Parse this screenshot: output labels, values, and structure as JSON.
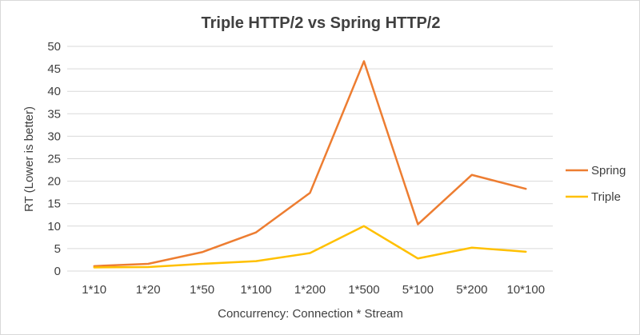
{
  "chart_data": {
    "type": "line",
    "title": "Triple HTTP/2 vs Spring HTTP/2",
    "xlabel": "Concurrency: Connection * Stream",
    "ylabel": "RT (Lower is better)",
    "categories": [
      "1*10",
      "1*20",
      "1*50",
      "1*100",
      "1*200",
      "1*500",
      "5*100",
      "5*200",
      "10*100"
    ],
    "ylim": [
      0,
      50
    ],
    "yticks": [
      0,
      5,
      10,
      15,
      20,
      25,
      30,
      35,
      40,
      45,
      50
    ],
    "grid": true,
    "legend_position": "right",
    "series": [
      {
        "name": "Spring",
        "color": "#ED7D31",
        "values": [
          1.1,
          1.6,
          4.2,
          8.6,
          17.4,
          46.7,
          10.4,
          21.4,
          18.3
        ]
      },
      {
        "name": "Triple",
        "color": "#FFC000",
        "values": [
          0.8,
          0.9,
          1.6,
          2.2,
          4.0,
          10.0,
          2.8,
          5.2,
          4.3
        ]
      }
    ]
  }
}
